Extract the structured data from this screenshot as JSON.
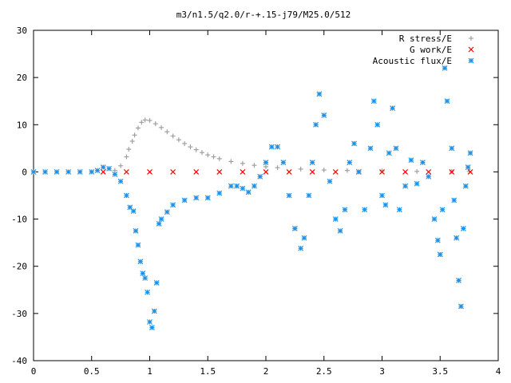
{
  "chart_data": {
    "type": "scatter",
    "title": "m3/n1.5/q2.0/r-+.15-j79/M25.0/512",
    "xlabel": "",
    "ylabel": "",
    "xlim": [
      0,
      4
    ],
    "ylim": [
      -40,
      30
    ],
    "xticks": [
      "0",
      "0.5",
      "1",
      "1.5",
      "2",
      "2.5",
      "3",
      "3.5",
      "4"
    ],
    "yticks": [
      "30",
      "20",
      "10",
      "0",
      "-10",
      "-20",
      "-30",
      "-40"
    ],
    "grid": false,
    "legend_position": "top-right",
    "series": [
      {
        "name": "R stress/E",
        "color": "#a0a0a0",
        "marker": "plus",
        "points": [
          [
            0.7,
            0.3
          ],
          [
            0.75,
            1.3
          ],
          [
            0.8,
            3.2
          ],
          [
            0.82,
            4.8
          ],
          [
            0.85,
            6.5
          ],
          [
            0.87,
            7.8
          ],
          [
            0.9,
            9.3
          ],
          [
            0.93,
            10.5
          ],
          [
            0.96,
            11.0
          ],
          [
            1.0,
            10.9
          ],
          [
            1.05,
            10.2
          ],
          [
            1.1,
            9.4
          ],
          [
            1.15,
            8.5
          ],
          [
            1.2,
            7.6
          ],
          [
            1.25,
            6.8
          ],
          [
            1.3,
            6.0
          ],
          [
            1.35,
            5.3
          ],
          [
            1.4,
            4.7
          ],
          [
            1.45,
            4.1
          ],
          [
            1.5,
            3.6
          ],
          [
            1.55,
            3.2
          ],
          [
            1.6,
            2.8
          ],
          [
            1.7,
            2.2
          ],
          [
            1.8,
            1.8
          ],
          [
            1.9,
            1.4
          ],
          [
            2.0,
            1.1
          ],
          [
            2.1,
            0.9
          ],
          [
            2.3,
            0.6
          ],
          [
            2.5,
            0.4
          ],
          [
            2.7,
            0.3
          ],
          [
            3.0,
            0.2
          ],
          [
            3.3,
            0.1
          ],
          [
            3.6,
            0.1
          ],
          [
            3.75,
            0.1
          ]
        ]
      },
      {
        "name": "G work/E",
        "color": "#ff0000",
        "marker": "cross",
        "points": [
          [
            0.6,
            0
          ],
          [
            0.8,
            0
          ],
          [
            1.0,
            0
          ],
          [
            1.2,
            0
          ],
          [
            1.4,
            0
          ],
          [
            1.6,
            0
          ],
          [
            1.8,
            0
          ],
          [
            2.0,
            0
          ],
          [
            2.2,
            0
          ],
          [
            2.4,
            0
          ],
          [
            2.6,
            0
          ],
          [
            2.8,
            0
          ],
          [
            3.0,
            0
          ],
          [
            3.2,
            0
          ],
          [
            3.4,
            0
          ],
          [
            3.6,
            0
          ],
          [
            3.76,
            0
          ]
        ]
      },
      {
        "name": "Acoustic flux/E",
        "color": "#1e90e6",
        "marker": "star",
        "points": [
          [
            0.0,
            0
          ],
          [
            0.1,
            0
          ],
          [
            0.2,
            0
          ],
          [
            0.3,
            0
          ],
          [
            0.4,
            0
          ],
          [
            0.5,
            0
          ],
          [
            0.55,
            0.3
          ],
          [
            0.6,
            1.0
          ],
          [
            0.65,
            0.7
          ],
          [
            0.7,
            -0.5
          ],
          [
            0.75,
            -2.0
          ],
          [
            0.8,
            -5.0
          ],
          [
            0.83,
            -7.5
          ],
          [
            0.86,
            -8.3
          ],
          [
            0.88,
            -12.5
          ],
          [
            0.9,
            -15.5
          ],
          [
            0.92,
            -19.0
          ],
          [
            0.94,
            -21.5
          ],
          [
            0.96,
            -22.5
          ],
          [
            0.98,
            -25.5
          ],
          [
            1.0,
            -31.8
          ],
          [
            1.02,
            -33.0
          ],
          [
            1.04,
            -29.5
          ],
          [
            1.06,
            -23.5
          ],
          [
            1.08,
            -11.0
          ],
          [
            1.1,
            -10.0
          ],
          [
            1.15,
            -8.5
          ],
          [
            1.2,
            -7.0
          ],
          [
            1.3,
            -6.0
          ],
          [
            1.4,
            -5.5
          ],
          [
            1.5,
            -5.5
          ],
          [
            1.6,
            -4.5
          ],
          [
            1.7,
            -3.0
          ],
          [
            1.75,
            -3.0
          ],
          [
            1.8,
            -3.5
          ],
          [
            1.85,
            -4.3
          ],
          [
            1.9,
            -3.0
          ],
          [
            1.95,
            -1.0
          ],
          [
            2.0,
            2.0
          ],
          [
            2.05,
            5.3
          ],
          [
            2.1,
            5.3
          ],
          [
            2.15,
            2.0
          ],
          [
            2.2,
            -5.0
          ],
          [
            2.25,
            -12.0
          ],
          [
            2.3,
            -16.2
          ],
          [
            2.33,
            -14.0
          ],
          [
            2.37,
            -5.0
          ],
          [
            2.4,
            2.0
          ],
          [
            2.43,
            10.0
          ],
          [
            2.46,
            16.5
          ],
          [
            2.5,
            12.0
          ],
          [
            2.55,
            -2.0
          ],
          [
            2.6,
            -10.0
          ],
          [
            2.64,
            -12.5
          ],
          [
            2.68,
            -8.0
          ],
          [
            2.72,
            2.0
          ],
          [
            2.76,
            6.0
          ],
          [
            2.8,
            0.0
          ],
          [
            2.85,
            -8.0
          ],
          [
            2.9,
            5.0
          ],
          [
            2.93,
            15.0
          ],
          [
            2.96,
            10.0
          ],
          [
            3.0,
            -5.0
          ],
          [
            3.03,
            -7.0
          ],
          [
            3.06,
            4.0
          ],
          [
            3.09,
            13.5
          ],
          [
            3.12,
            5.0
          ],
          [
            3.15,
            -8.0
          ],
          [
            3.2,
            -3.0
          ],
          [
            3.25,
            2.5
          ],
          [
            3.3,
            -2.5
          ],
          [
            3.35,
            2.0
          ],
          [
            3.4,
            -1.0
          ],
          [
            3.45,
            -10.0
          ],
          [
            3.48,
            -14.5
          ],
          [
            3.5,
            -17.5
          ],
          [
            3.52,
            -8.0
          ],
          [
            3.54,
            22.0
          ],
          [
            3.56,
            15.0
          ],
          [
            3.6,
            5.0
          ],
          [
            3.62,
            -6.0
          ],
          [
            3.64,
            -14.0
          ],
          [
            3.66,
            -23.0
          ],
          [
            3.68,
            -28.5
          ],
          [
            3.7,
            -12.0
          ],
          [
            3.72,
            -3.0
          ],
          [
            3.74,
            1.0
          ],
          [
            3.76,
            4.0
          ]
        ]
      }
    ]
  }
}
